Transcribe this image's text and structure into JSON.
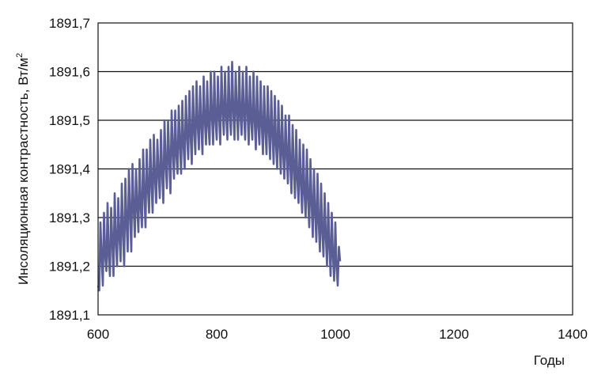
{
  "chart_data": {
    "type": "line",
    "title": "",
    "xlabel": "Годы",
    "ylabel": "Инсоляционная контрастность, Вт/м",
    "ylabel_sup": "2",
    "xlim": [
      600,
      1400
    ],
    "ylim": [
      1891.1,
      1891.7
    ],
    "xticks": [
      600,
      800,
      1000,
      1200,
      1400
    ],
    "xtick_labels": [
      "600",
      "800",
      "1000",
      "1200",
      "1400"
    ],
    "yticks": [
      1891.1,
      1891.2,
      1891.3,
      1891.4,
      1891.5,
      1891.6,
      1891.7
    ],
    "ytick_labels": [
      "1891,1",
      "1891,2",
      "1891,3",
      "1891,4",
      "1891,5",
      "1891,6",
      "1891,7"
    ],
    "grid": "horizontal",
    "legend": "none",
    "line_color": "#5b5e94",
    "x_step": 2,
    "series": [
      {
        "y": [
          1891.16,
          1891.15,
          1891.29,
          1891.22,
          1891.16,
          1891.31,
          1891.22,
          1891.19,
          1891.33,
          1891.22,
          1891.18,
          1891.32,
          1891.25,
          1891.18,
          1891.35,
          1891.25,
          1891.2,
          1891.34,
          1891.26,
          1891.21,
          1891.37,
          1891.27,
          1891.2,
          1891.38,
          1891.29,
          1891.23,
          1891.4,
          1891.31,
          1891.23,
          1891.41,
          1891.32,
          1891.26,
          1891.4,
          1891.32,
          1891.27,
          1891.42,
          1891.32,
          1891.28,
          1891.44,
          1891.35,
          1891.28,
          1891.44,
          1891.36,
          1891.31,
          1891.46,
          1891.37,
          1891.31,
          1891.47,
          1891.38,
          1891.33,
          1891.46,
          1891.39,
          1891.34,
          1891.48,
          1891.39,
          1891.33,
          1891.5,
          1891.41,
          1891.36,
          1891.5,
          1891.42,
          1891.35,
          1891.52,
          1891.44,
          1891.38,
          1891.52,
          1891.43,
          1891.39,
          1891.53,
          1891.45,
          1891.39,
          1891.54,
          1891.45,
          1891.4,
          1891.55,
          1891.47,
          1891.42,
          1891.56,
          1891.47,
          1891.41,
          1891.57,
          1891.48,
          1891.43,
          1891.58,
          1891.49,
          1891.44,
          1891.57,
          1891.49,
          1891.43,
          1891.59,
          1891.5,
          1891.45,
          1891.58,
          1891.49,
          1891.45,
          1891.6,
          1891.51,
          1891.45,
          1891.6,
          1891.5,
          1891.46,
          1891.59,
          1891.51,
          1891.45,
          1891.61,
          1891.52,
          1891.47,
          1891.6,
          1891.51,
          1891.46,
          1891.61,
          1891.51,
          1891.47,
          1891.62,
          1891.52,
          1891.46,
          1891.6,
          1891.52,
          1891.46,
          1891.61,
          1891.51,
          1891.47,
          1891.6,
          1891.51,
          1891.46,
          1891.61,
          1891.52,
          1891.45,
          1891.59,
          1891.5,
          1891.46,
          1891.6,
          1891.5,
          1891.44,
          1891.59,
          1891.49,
          1891.45,
          1891.58,
          1891.49,
          1891.43,
          1891.57,
          1891.48,
          1891.43,
          1891.57,
          1891.48,
          1891.42,
          1891.56,
          1891.47,
          1891.41,
          1891.55,
          1891.45,
          1891.4,
          1891.54,
          1891.45,
          1891.39,
          1891.53,
          1891.43,
          1891.38,
          1891.51,
          1891.43,
          1891.37,
          1891.51,
          1891.41,
          1891.35,
          1891.49,
          1891.4,
          1891.34,
          1891.48,
          1891.38,
          1891.33,
          1891.46,
          1891.37,
          1891.31,
          1891.45,
          1891.35,
          1891.3,
          1891.44,
          1891.34,
          1891.28,
          1891.42,
          1891.33,
          1891.26,
          1891.4,
          1891.31,
          1891.25,
          1891.39,
          1891.29,
          1891.23,
          1891.37,
          1891.27,
          1891.22,
          1891.35,
          1891.26,
          1891.2,
          1891.33,
          1891.24,
          1891.18,
          1891.31,
          1891.22,
          1891.17,
          1891.29,
          1891.2,
          1891.16,
          1891.24,
          1891.21
        ]
      }
    ]
  }
}
